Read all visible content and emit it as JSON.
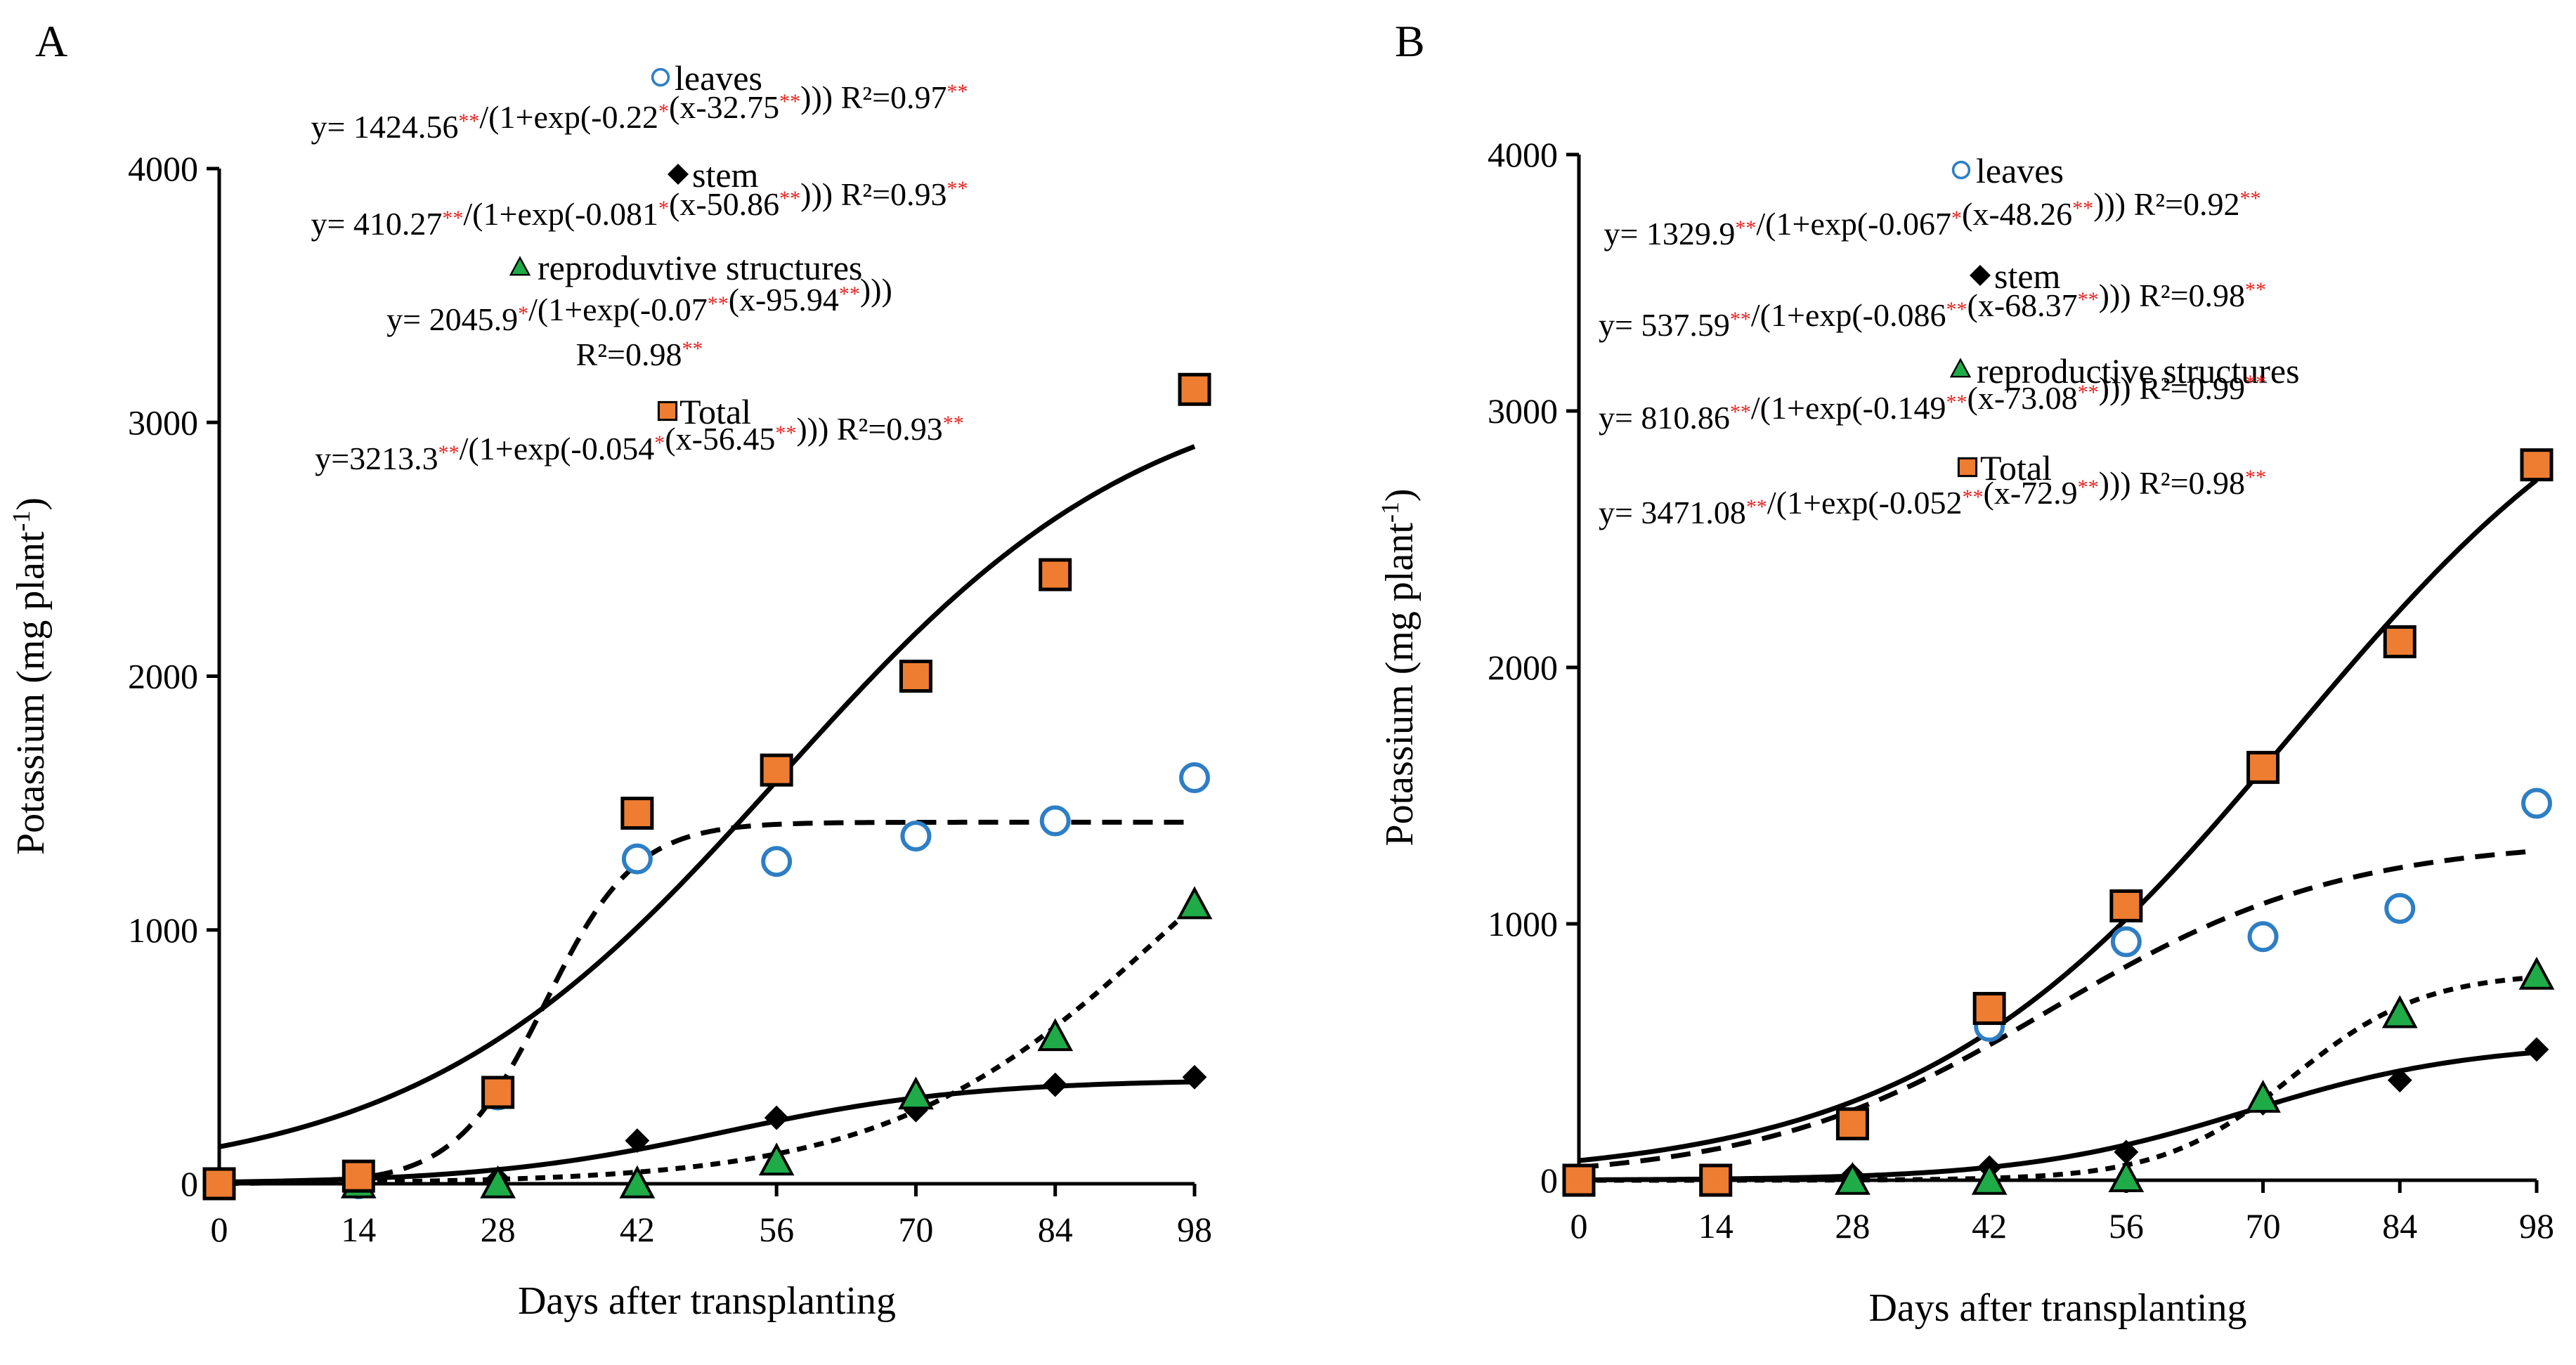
{
  "colors": {
    "leaves": "#2e7ec5",
    "stem": "#000000",
    "reproductive": "#1fab48",
    "total": "#ee7d31",
    "significance": "#e8211d"
  },
  "chart_data": [
    {
      "type": "scatter",
      "panel": "A",
      "xlabel": "Days after transplanting",
      "ylabel": "Potassium  (mg plant",
      "ylabel_sup": "-1",
      "ylabel_end": ")",
      "xlim": [
        0,
        98
      ],
      "ylim": [
        0,
        4000
      ],
      "xticks": [
        0,
        14,
        28,
        42,
        56,
        70,
        84,
        98
      ],
      "yticks": [
        0,
        1000,
        2000,
        3000,
        4000
      ],
      "series": [
        {
          "key": "leaves",
          "name": "leaves",
          "marker": "circle",
          "x": [
            0,
            14,
            28,
            42,
            56,
            70,
            84,
            98
          ],
          "y": [
            0,
            0,
            350,
            1280,
            1270,
            1370,
            1430,
            1600
          ],
          "fit": {
            "a": 1424.56,
            "b": 0.22,
            "c": 32.75,
            "dash": "28 16"
          },
          "equation": [
            {
              "t": "y= 1424.56"
            },
            {
              "t": "**",
              "sig": true
            },
            {
              "t": "/(1+exp(-0.22"
            },
            {
              "t": "*",
              "sig": true
            },
            {
              "t": "(x-32.75"
            },
            {
              "t": "**",
              "sig": true
            },
            {
              "t": ")))  R²=0.97"
            },
            {
              "t": "**",
              "sig": true
            }
          ]
        },
        {
          "key": "stem",
          "name": "stem",
          "marker": "diamond",
          "x": [
            0,
            14,
            28,
            42,
            56,
            70,
            84,
            98
          ],
          "y": [
            0,
            0,
            20,
            170,
            260,
            290,
            390,
            420
          ],
          "fit": {
            "a": 410.27,
            "b": 0.081,
            "c": 50.86,
            "dash": ""
          },
          "equation": [
            {
              "t": "y= 410.27"
            },
            {
              "t": "**",
              "sig": true
            },
            {
              "t": "/(1+exp(-0.081"
            },
            {
              "t": "*",
              "sig": true
            },
            {
              "t": "(x-50.86"
            },
            {
              "t": "**",
              "sig": true
            },
            {
              "t": ")))  R²=0.93"
            },
            {
              "t": "**",
              "sig": true
            }
          ]
        },
        {
          "key": "reproductive",
          "name": "reproduvtive structures",
          "marker": "triangle",
          "x": [
            14,
            28,
            42,
            56,
            70,
            84,
            98
          ],
          "y": [
            0,
            0,
            0,
            90,
            350,
            580,
            1100
          ],
          "fit": {
            "a": 2045.9,
            "b": 0.07,
            "c": 95.94,
            "dash": "14 11"
          },
          "equation": [
            {
              "t": "y= 2045.9"
            },
            {
              "t": "*",
              "sig": true
            },
            {
              "t": "/(1+exp(-0.07"
            },
            {
              "t": "**",
              "sig": true
            },
            {
              "t": "(x-95.94"
            },
            {
              "t": "**",
              "sig": true
            },
            {
              "t": ")))"
            }
          ],
          "equation2": [
            {
              "t": "R²=0.98"
            },
            {
              "t": "**",
              "sig": true
            }
          ]
        },
        {
          "key": "total",
          "name": "Total",
          "marker": "square",
          "x": [
            0,
            14,
            28,
            42,
            56,
            70,
            84,
            98
          ],
          "y": [
            0,
            30,
            360,
            1460,
            1630,
            2000,
            2400,
            3130
          ],
          "fit": {
            "a": 3213.3,
            "b": 0.054,
            "c": 56.45,
            "dash": ""
          },
          "equation": [
            {
              "t": "y=3213.3"
            },
            {
              "t": "**",
              "sig": true
            },
            {
              "t": "/(1+exp(-0.054"
            },
            {
              "t": "*",
              "sig": true
            },
            {
              "t": "(x-56.45"
            },
            {
              "t": "**",
              "sig": true
            },
            {
              "t": "))) R²=0.93"
            },
            {
              "t": "**",
              "sig": true
            }
          ]
        }
      ]
    },
    {
      "type": "scatter",
      "panel": "B",
      "xlabel": "Days after transplanting",
      "ylabel": "Potassium (mg plant",
      "ylabel_sup": "-1",
      "ylabel_end": ")",
      "xlim": [
        0,
        98
      ],
      "ylim": [
        0,
        4000
      ],
      "xticks": [
        0,
        14,
        28,
        42,
        56,
        70,
        84,
        98
      ],
      "yticks": [
        0,
        1000,
        2000,
        3000,
        4000
      ],
      "series": [
        {
          "key": "leaves",
          "name": "leaves",
          "marker": "circle",
          "x": [
            0,
            14,
            28,
            42,
            56,
            70,
            84,
            98
          ],
          "y": [
            0,
            0,
            220,
            600,
            930,
            950,
            1060,
            1470
          ],
          "fit": {
            "a": 1329.9,
            "b": 0.067,
            "c": 48.26,
            "dash": "28 16"
          },
          "equation": [
            {
              "t": "y= 1329.9"
            },
            {
              "t": "**",
              "sig": true
            },
            {
              "t": "/(1+exp(-0.067"
            },
            {
              "t": "*",
              "sig": true
            },
            {
              "t": "(x-48.26"
            },
            {
              "t": "**",
              "sig": true
            },
            {
              "t": "))) R²=0.92"
            },
            {
              "t": "**",
              "sig": true
            }
          ]
        },
        {
          "key": "stem",
          "name": "stem",
          "marker": "diamond",
          "x": [
            0,
            14,
            28,
            42,
            56,
            70,
            84,
            98
          ],
          "y": [
            0,
            0,
            20,
            50,
            110,
            300,
            390,
            510
          ],
          "fit": {
            "a": 537.59,
            "b": 0.086,
            "c": 68.37,
            "dash": ""
          },
          "equation": [
            {
              "t": "y= 537.59"
            },
            {
              "t": "**",
              "sig": true
            },
            {
              "t": "/(1+exp(-0.086"
            },
            {
              "t": "**",
              "sig": true
            },
            {
              "t": "(x-68.37"
            },
            {
              "t": "**",
              "sig": true
            },
            {
              "t": "))) R²=0.98"
            },
            {
              "t": "**",
              "sig": true
            }
          ]
        },
        {
          "key": "reproductive",
          "name": "reproductive structures",
          "marker": "triangle",
          "x": [
            28,
            42,
            56,
            70,
            84,
            98
          ],
          "y": [
            0,
            0,
            10,
            320,
            650,
            800
          ],
          "fit": {
            "a": 810.86,
            "b": 0.149,
            "c": 73.08,
            "dash": "14 11"
          },
          "equation": [
            {
              "t": "y= 810.86"
            },
            {
              "t": "**",
              "sig": true
            },
            {
              "t": "/(1+exp(-0.149"
            },
            {
              "t": "**",
              "sig": true
            },
            {
              "t": "(x-73.08"
            },
            {
              "t": "**",
              "sig": true
            },
            {
              "t": "))) R²=0.99"
            },
            {
              "t": "**",
              "sig": true
            }
          ]
        },
        {
          "key": "total",
          "name": "Total",
          "marker": "square",
          "x": [
            0,
            14,
            28,
            42,
            56,
            70,
            84,
            98
          ],
          "y": [
            0,
            0,
            220,
            670,
            1070,
            1610,
            2100,
            2790
          ],
          "fit": {
            "a": 3471.08,
            "b": 0.052,
            "c": 72.9,
            "dash": ""
          },
          "equation": [
            {
              "t": "y= 3471.08"
            },
            {
              "t": "**",
              "sig": true
            },
            {
              "t": "/(1+exp(-0.052"
            },
            {
              "t": "**",
              "sig": true
            },
            {
              "t": "(x-72.9"
            },
            {
              "t": "**",
              "sig": true
            },
            {
              "t": "))) R²=0.98"
            },
            {
              "t": "**",
              "sig": true
            }
          ]
        }
      ]
    }
  ]
}
